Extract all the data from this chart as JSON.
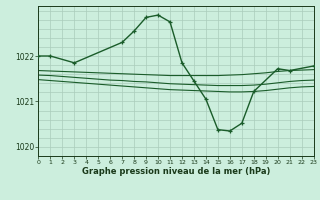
{
  "title": "Graphe pression niveau de la mer (hPa)",
  "bg_color": "#cceedd",
  "grid_color": "#aaccbb",
  "line_color": "#1a5c2a",
  "xlim": [
    0,
    23
  ],
  "ylim": [
    1019.8,
    1023.1
  ],
  "yticks": [
    1020,
    1021,
    1022
  ],
  "xticks": [
    0,
    1,
    2,
    3,
    4,
    5,
    6,
    7,
    8,
    9,
    10,
    11,
    12,
    13,
    14,
    15,
    16,
    17,
    18,
    19,
    20,
    21,
    22,
    23
  ],
  "x_main": [
    0,
    1,
    3,
    7,
    8,
    9,
    10,
    11,
    12,
    13,
    14,
    15,
    16,
    17,
    18,
    20,
    21,
    23
  ],
  "y_main": [
    1022.0,
    1022.0,
    1021.85,
    1022.3,
    1022.55,
    1022.85,
    1022.9,
    1022.75,
    1021.85,
    1021.45,
    1021.05,
    1020.38,
    1020.35,
    1020.52,
    1021.22,
    1021.72,
    1021.68,
    1021.78
  ],
  "y_line1": [
    1021.68,
    1021.67,
    1021.66,
    1021.65,
    1021.64,
    1021.63,
    1021.62,
    1021.61,
    1021.6,
    1021.59,
    1021.58,
    1021.57,
    1021.57,
    1021.57,
    1021.57,
    1021.57,
    1021.58,
    1021.59,
    1021.61,
    1021.63,
    1021.66,
    1021.68,
    1021.69,
    1021.7
  ],
  "y_line2": [
    1021.58,
    1021.57,
    1021.55,
    1021.53,
    1021.51,
    1021.49,
    1021.47,
    1021.46,
    1021.44,
    1021.43,
    1021.41,
    1021.39,
    1021.38,
    1021.37,
    1021.36,
    1021.35,
    1021.35,
    1021.35,
    1021.36,
    1021.38,
    1021.41,
    1021.44,
    1021.46,
    1021.47
  ],
  "y_line3": [
    1021.48,
    1021.46,
    1021.44,
    1021.42,
    1021.4,
    1021.38,
    1021.36,
    1021.34,
    1021.32,
    1021.3,
    1021.28,
    1021.26,
    1021.25,
    1021.24,
    1021.23,
    1021.22,
    1021.21,
    1021.21,
    1021.22,
    1021.24,
    1021.27,
    1021.3,
    1021.32,
    1021.33
  ]
}
